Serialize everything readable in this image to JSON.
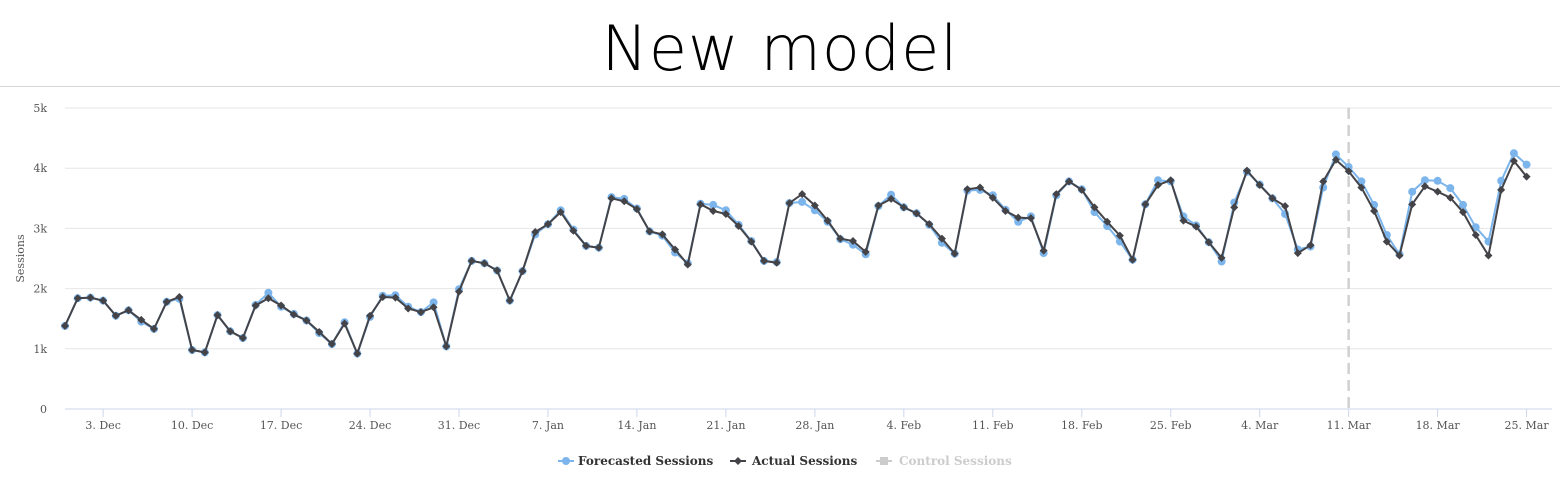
{
  "page": {
    "title": "New model"
  },
  "chart_data": {
    "type": "line",
    "title": "",
    "xlabel": "",
    "ylabel": "Sessions",
    "ylim": [
      0,
      5000
    ],
    "y_ticks": [
      "0",
      "1k",
      "2k",
      "3k",
      "4k",
      "5k"
    ],
    "x_range": [
      "2017-11-30",
      "2018-03-27"
    ],
    "x_ticks": [
      {
        "date": "2017-12-03",
        "label": "3. Dec"
      },
      {
        "date": "2017-12-10",
        "label": "10. Dec"
      },
      {
        "date": "2017-12-17",
        "label": "17. Dec"
      },
      {
        "date": "2017-12-24",
        "label": "24. Dec"
      },
      {
        "date": "2017-12-31",
        "label": "31. Dec"
      },
      {
        "date": "2018-01-07",
        "label": "7. Jan"
      },
      {
        "date": "2018-01-14",
        "label": "14. Jan"
      },
      {
        "date": "2018-01-21",
        "label": "21. Jan"
      },
      {
        "date": "2018-01-28",
        "label": "28. Jan"
      },
      {
        "date": "2018-02-04",
        "label": "4. Feb"
      },
      {
        "date": "2018-02-11",
        "label": "11. Feb"
      },
      {
        "date": "2018-02-18",
        "label": "18. Feb"
      },
      {
        "date": "2018-02-25",
        "label": "25. Feb"
      },
      {
        "date": "2018-03-04",
        "label": "4. Mar"
      },
      {
        "date": "2018-03-11",
        "label": "11. Mar"
      },
      {
        "date": "2018-03-18",
        "label": "18. Mar"
      },
      {
        "date": "2018-03-25",
        "label": "25. Mar"
      }
    ],
    "start_date": "2017-12-03",
    "grid": true,
    "legend_position": "bottom-center",
    "reference_line": {
      "date": "2018-03-11",
      "style": "dashed"
    },
    "series": [
      {
        "name": "Forecasted Sessions",
        "color": "#7cb5ec",
        "marker": "circle",
        "values": [
          1380,
          1840,
          1850,
          1800,
          1550,
          1640,
          1450,
          1330,
          1780,
          1830,
          980,
          940,
          1560,
          1290,
          1180,
          1730,
          1930,
          1700,
          1580,
          1470,
          1260,
          1080,
          1440,
          920,
          1530,
          1880,
          1890,
          1700,
          1610,
          1770,
          1040,
          1990,
          2460,
          2420,
          2300,
          1800,
          2290,
          2900,
          3070,
          3300,
          2980,
          2710,
          2680,
          3520,
          3490,
          3330,
          2950,
          2880,
          2600,
          2420,
          3410,
          3390,
          3300,
          3060,
          2790,
          2460,
          2440,
          3420,
          3440,
          3300,
          3110,
          2820,
          2730,
          2570,
          3370,
          3560,
          3350,
          3250,
          3060,
          2760,
          2580,
          3630,
          3640,
          3550,
          3310,
          3110,
          3200,
          2590,
          3550,
          3780,
          3650,
          3270,
          3040,
          2780,
          2480,
          3400,
          3800,
          3780,
          3200,
          3050,
          2770,
          2450,
          3430,
          3940,
          3730,
          3500,
          3240,
          2650,
          2700,
          3680,
          4230,
          4020,
          3780,
          3390,
          2890,
          2570,
          3610,
          3800,
          3790,
          3670,
          3390,
          3020,
          2780,
          3790,
          4250,
          4060
        ]
      },
      {
        "name": "Actual Sessions",
        "color": "#434348",
        "marker": "diamond",
        "values": [
          1380,
          1840,
          1850,
          1800,
          1550,
          1640,
          1480,
          1330,
          1780,
          1860,
          980,
          940,
          1560,
          1290,
          1180,
          1720,
          1840,
          1720,
          1570,
          1470,
          1280,
          1080,
          1420,
          920,
          1550,
          1860,
          1850,
          1670,
          1610,
          1690,
          1040,
          1950,
          2460,
          2420,
          2300,
          1800,
          2290,
          2940,
          3070,
          3270,
          2960,
          2710,
          2680,
          3500,
          3450,
          3320,
          2950,
          2900,
          2650,
          2400,
          3400,
          3290,
          3240,
          3040,
          2780,
          2460,
          2430,
          3420,
          3570,
          3380,
          3130,
          2830,
          2790,
          2610,
          3380,
          3490,
          3350,
          3250,
          3070,
          2830,
          2580,
          3650,
          3680,
          3510,
          3290,
          3180,
          3170,
          2630,
          3570,
          3780,
          3640,
          3350,
          3110,
          2880,
          2480,
          3400,
          3720,
          3800,
          3130,
          3030,
          2770,
          2510,
          3350,
          3960,
          3720,
          3500,
          3370,
          2590,
          2720,
          3780,
          4140,
          3950,
          3680,
          3290,
          2780,
          2550,
          3400,
          3700,
          3610,
          3510,
          3270,
          2890,
          2550,
          3640,
          4120,
          3860
        ]
      },
      {
        "name": "Control Sessions",
        "color": "#cccccc",
        "marker": "square",
        "values": []
      }
    ]
  }
}
